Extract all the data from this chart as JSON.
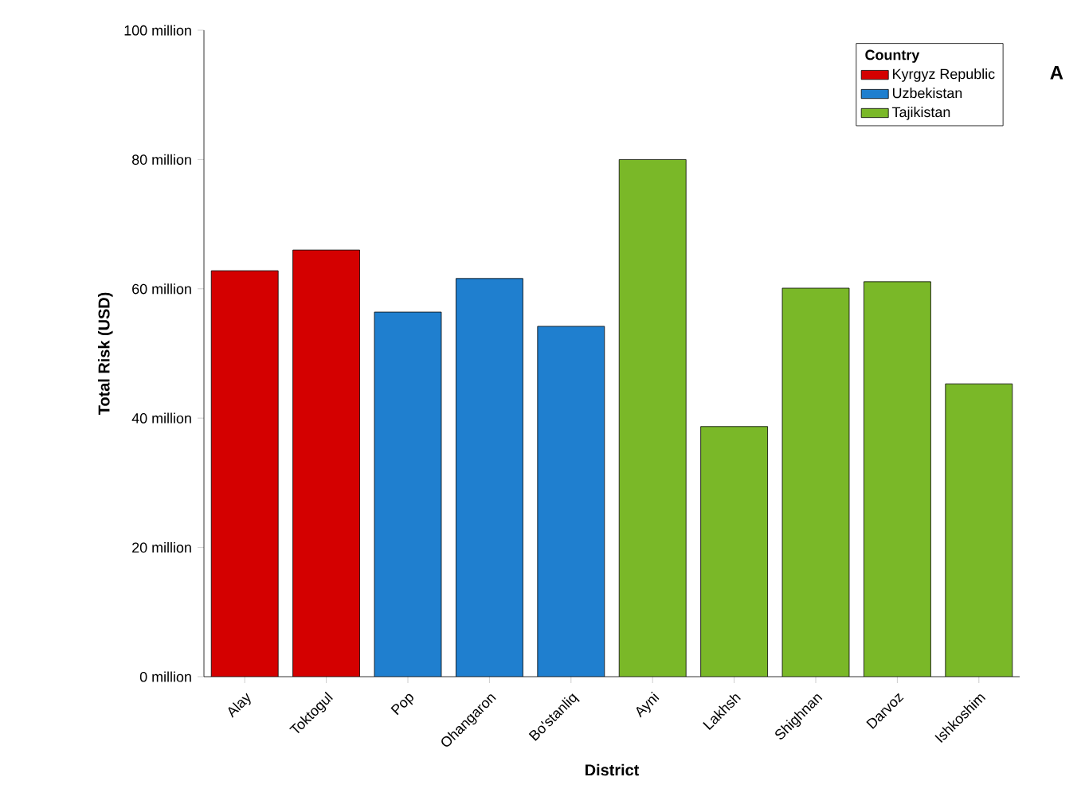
{
  "chart_data": {
    "type": "bar",
    "xlabel": "District",
    "ylabel": "Total Risk (USD)",
    "legend_title": "Country",
    "legend": "top right",
    "annotations": [
      "A"
    ],
    "categories": [
      "Alay",
      "Toktogul",
      "Pop",
      "Ohangaron",
      "Bo'stanliq",
      "Ayni",
      "Lakhsh",
      "Shighnan",
      "Darvoz",
      "Ishkoshim"
    ],
    "series": [
      {
        "name": "Kyrgyz Republic",
        "color": "#d40000",
        "values": [
          62.8,
          66.0,
          null,
          null,
          null,
          null,
          null,
          null,
          null,
          null
        ]
      },
      {
        "name": "Uzbekistan",
        "color": "#1f7fcf",
        "values": [
          null,
          null,
          56.4,
          61.6,
          54.2,
          null,
          null,
          null,
          null,
          null
        ]
      },
      {
        "name": "Tajikistan",
        "color": "#7ab828",
        "values": [
          null,
          null,
          null,
          null,
          null,
          80.0,
          38.7,
          60.1,
          61.1,
          45.3
        ]
      }
    ],
    "ylim": [
      0,
      100
    ],
    "yticks": [
      {
        "value": 0,
        "label": "0 million"
      },
      {
        "value": 20,
        "label": "20 million"
      },
      {
        "value": 40,
        "label": "40 million"
      },
      {
        "value": 60,
        "label": "60 million"
      },
      {
        "value": 80,
        "label": "80 million"
      },
      {
        "value": 100,
        "label": "100 million"
      }
    ]
  }
}
